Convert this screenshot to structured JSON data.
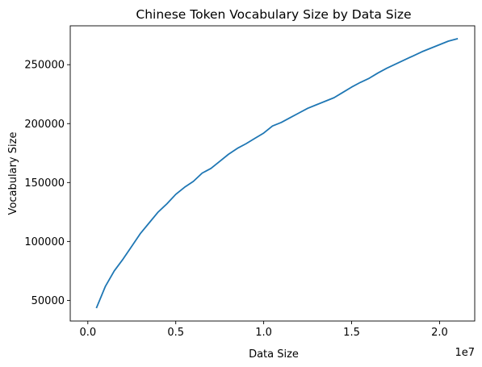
{
  "chart_data": {
    "type": "line",
    "title": "Chinese Token Vocabulary Size by Data Size",
    "xlabel": "Data Size",
    "ylabel": "Vocabulary Size",
    "x_offset_text": "1e7",
    "x_scale": 10000000,
    "xlim": [
      -0.1,
      2.2
    ],
    "ylim": [
      32500,
      283000
    ],
    "xticks": [
      0.0,
      0.5,
      1.0,
      1.5,
      2.0
    ],
    "xtick_labels": [
      "0.0",
      "0.5",
      "1.0",
      "1.5",
      "2.0"
    ],
    "yticks": [
      50000,
      100000,
      150000,
      200000,
      250000
    ],
    "ytick_labels": [
      "50000",
      "100000",
      "150000",
      "200000",
      "250000"
    ],
    "grid": false,
    "series": [
      {
        "color": "#1f77b4",
        "x": [
          0.05,
          0.1,
          0.15,
          0.2,
          0.25,
          0.3,
          0.35,
          0.4,
          0.45,
          0.5,
          0.55,
          0.6,
          0.65,
          0.7,
          0.75,
          0.8,
          0.85,
          0.9,
          0.95,
          1.0,
          1.05,
          1.1,
          1.15,
          1.2,
          1.25,
          1.3,
          1.35,
          1.4,
          1.45,
          1.5,
          1.55,
          1.6,
          1.65,
          1.7,
          1.75,
          1.8,
          1.85,
          1.9,
          1.95,
          2.0,
          2.05,
          2.1
        ],
        "y": [
          44000,
          62000,
          75000,
          85000,
          96000,
          107000,
          116000,
          125000,
          132000,
          140000,
          146000,
          151000,
          158000,
          162000,
          168000,
          174000,
          179000,
          183000,
          187500,
          192000,
          198000,
          201000,
          205000,
          209000,
          213000,
          216000,
          219000,
          222000,
          226500,
          231000,
          235000,
          238500,
          243000,
          247000,
          250500,
          254000,
          257500,
          261000,
          264000,
          267000,
          270000,
          272000
        ]
      }
    ]
  }
}
